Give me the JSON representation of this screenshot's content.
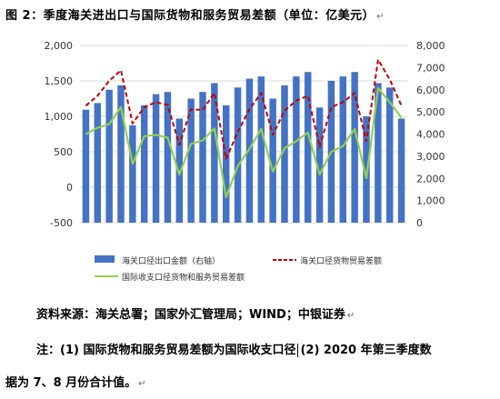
{
  "figure": {
    "title": "图 2：季度海关进出口与国际货物和服务贸易差额（单位：亿美元）"
  },
  "chart_data": {
    "type": "bar-line-combo",
    "categories": [
      "",
      "",
      "",
      "",
      "",
      "",
      "",
      "",
      "",
      "",
      "",
      "",
      "",
      "",
      "",
      "",
      "",
      "",
      "",
      "",
      "",
      "",
      "",
      "",
      "",
      "",
      "",
      ""
    ],
    "left_axis": {
      "range": [
        -500,
        2000
      ],
      "ticks": [
        "-500",
        "0",
        "500",
        "1,000",
        "1,500",
        "2,000"
      ]
    },
    "right_axis": {
      "range": [
        0,
        8000
      ],
      "ticks": [
        "0",
        "1,000",
        "2,000",
        "3,000",
        "4,000",
        "5,000",
        "6,000",
        "7,000",
        "8,000"
      ]
    },
    "series": [
      {
        "name": "海关口径出口金额（右轴）",
        "type": "bar",
        "axis": "right",
        "color": "#4472c4",
        "values": [
          5100,
          5400,
          6000,
          6200,
          4400,
          5300,
          5800,
          5900,
          4700,
          5600,
          5900,
          6300,
          5300,
          6100,
          6500,
          6600,
          5600,
          6200,
          6600,
          6800,
          5200,
          6400,
          6600,
          6800,
          4800,
          6300,
          6100,
          4700
        ]
      },
      {
        "name": "海关口径货物贸易差额",
        "type": "line",
        "axis": "left",
        "color": "#c00000",
        "values": [
          1150,
          1290,
          1500,
          1650,
          900,
          1130,
          1200,
          1160,
          600,
          1100,
          1090,
          1330,
          400,
          780,
          1100,
          1330,
          740,
          1080,
          1220,
          1290,
          570,
          1130,
          1200,
          1330,
          650,
          1800,
          1520,
          1150
        ]
      },
      {
        "name": "国际收支口径货物和服务贸易差额",
        "type": "line",
        "axis": "left",
        "color": "#92d050",
        "values": [
          750,
          840,
          890,
          1130,
          330,
          720,
          740,
          700,
          180,
          610,
          660,
          830,
          -140,
          300,
          540,
          820,
          220,
          550,
          650,
          770,
          180,
          500,
          580,
          820,
          130,
          1400,
          1200,
          980
        ]
      }
    ],
    "legend_position": "bottom",
    "grid": true
  },
  "notes": {
    "source": "资料来源：海关总署；国家外汇管理局；WIND；中银证券",
    "note1_a": "注：(1) 国际货物和服务贸易差额为国际收支口径",
    "note1_b": "(2) 2020 年第三季度数",
    "note2": "据为 7、8 月份合计值。",
    "return_mark": "↵"
  }
}
